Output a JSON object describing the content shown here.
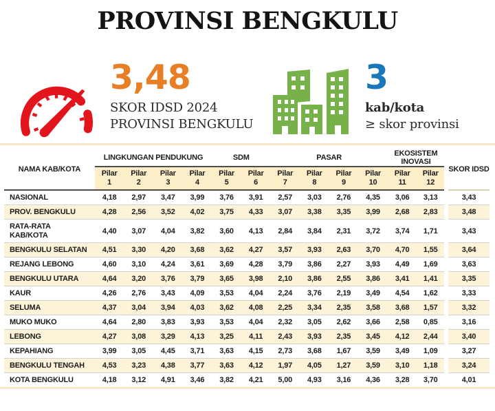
{
  "title": "PROVINSI BENGKULU",
  "score_card": {
    "value": "3,48",
    "caption_line1": "SKOR IDSD 2024",
    "caption_line2": "PROVINSI BENGKULU",
    "value_color": "#e87f26"
  },
  "count_card": {
    "value": "3",
    "caption_line1": "kab/kota",
    "caption_line2": "≥ skor provinsi",
    "value_color": "#1a78b8"
  },
  "icons": {
    "speedometer_color": "#e2141c",
    "buildings_color": "#76b14a"
  },
  "colors": {
    "stripe": "#fdf3d8",
    "stripe_header": "#fbeec9"
  },
  "table": {
    "name_header": "NAMA KAB/KOTA",
    "score_header": "SKOR IDSD",
    "pillar_label": "Pilar",
    "groups": [
      {
        "label": "LINGKUNGAN PENDUKUNG",
        "span": 4
      },
      {
        "label": "SDM",
        "span": 2
      },
      {
        "label": "PASAR",
        "span": 4
      },
      {
        "label": "EKOSISTEM INOVASI",
        "span": 2
      }
    ],
    "pillar_numbers": [
      "1",
      "2",
      "3",
      "4",
      "5",
      "6",
      "7",
      "8",
      "9",
      "10",
      "11",
      "12"
    ],
    "rows": [
      {
        "name": "NASIONAL",
        "values": [
          "4,18",
          "2,97",
          "3,47",
          "3,99",
          "3,76",
          "3,91",
          "2,57",
          "3,03",
          "2,76",
          "4,35",
          "3,06",
          "3,13"
        ],
        "score": "3,43"
      },
      {
        "name": "PROV. BENGKULU",
        "values": [
          "4,28",
          "2,56",
          "3,52",
          "4,02",
          "3,75",
          "4,33",
          "3,07",
          "3,38",
          "3,35",
          "3,99",
          "2,68",
          "2,83"
        ],
        "score": "3,48"
      },
      {
        "name": "RATA-RATA\nKAB/KOTA",
        "values": [
          "4,40",
          "3,07",
          "4,04",
          "3,82",
          "3,60",
          "4,13",
          "2,84",
          "3,84",
          "2,31",
          "3,72",
          "3,74",
          "1,71"
        ],
        "score": "3,43"
      },
      {
        "name": "BENGKULU SELATAN",
        "values": [
          "4,51",
          "3,30",
          "4,20",
          "3,68",
          "3,62",
          "4,27",
          "3,57",
          "3,93",
          "2,63",
          "3,70",
          "4,70",
          "1,55"
        ],
        "score": "3,64"
      },
      {
        "name": "REJANG LEBONG",
        "values": [
          "4,60",
          "3,10",
          "4,24",
          "3,61",
          "3,69",
          "4,28",
          "3,79",
          "3,86",
          "2,27",
          "3,93",
          "4,49",
          "1,69"
        ],
        "score": "3,63"
      },
      {
        "name": "BENGKULU UTARA",
        "values": [
          "4,64",
          "3,20",
          "3,76",
          "3,79",
          "3,65",
          "3,98",
          "2,10",
          "3,86",
          "2,55",
          "3,86",
          "3,41",
          "1,41"
        ],
        "score": "3,35"
      },
      {
        "name": "KAUR",
        "values": [
          "4,26",
          "2,76",
          "3,43",
          "4,09",
          "3,53",
          "4,04",
          "2,24",
          "3,76",
          "2,19",
          "3,49",
          "4,54",
          "1,62"
        ],
        "score": "3,33"
      },
      {
        "name": "SELUMA",
        "values": [
          "4,37",
          "3,04",
          "3,94",
          "4,03",
          "3,62",
          "4,08",
          "2,25",
          "3,34",
          "2,35",
          "3,58",
          "3,68",
          "1,57"
        ],
        "score": "3,32"
      },
      {
        "name": "MUKO MUKO",
        "values": [
          "4,64",
          "2,80",
          "3,83",
          "3,93",
          "3,53",
          "4,04",
          "2,32",
          "3,05",
          "2,62",
          "3,66",
          "2,58",
          "0,85"
        ],
        "score": "3,16"
      },
      {
        "name": "LEBONG",
        "values": [
          "4,27",
          "3,08",
          "3,29",
          "4,13",
          "3,25",
          "4,11",
          "2,43",
          "3,93",
          "2,35",
          "3,45",
          "4,12",
          "2,44"
        ],
        "score": "3,40"
      },
      {
        "name": "KEPAHIANG",
        "values": [
          "3,99",
          "3,05",
          "4,45",
          "3,71",
          "3,63",
          "4,15",
          "2,73",
          "3,68",
          "1,67",
          "3,59",
          "3,49",
          "1,09"
        ],
        "score": "3,27"
      },
      {
        "name": "BENGKULU TENGAH",
        "values": [
          "4,53",
          "3,23",
          "4,38",
          "3,77",
          "3,63",
          "4,12",
          "1,97",
          "4,05",
          "1,27",
          "3,59",
          "3,10",
          "1,18"
        ],
        "score": "3,24"
      },
      {
        "name": "KOTA BENGKULU",
        "values": [
          "4,18",
          "3,12",
          "4,91",
          "3,46",
          "3,82",
          "4,21",
          "5,00",
          "4,93",
          "3,16",
          "4,36",
          "3,28",
          "3,70"
        ],
        "score": "4,01"
      }
    ]
  }
}
